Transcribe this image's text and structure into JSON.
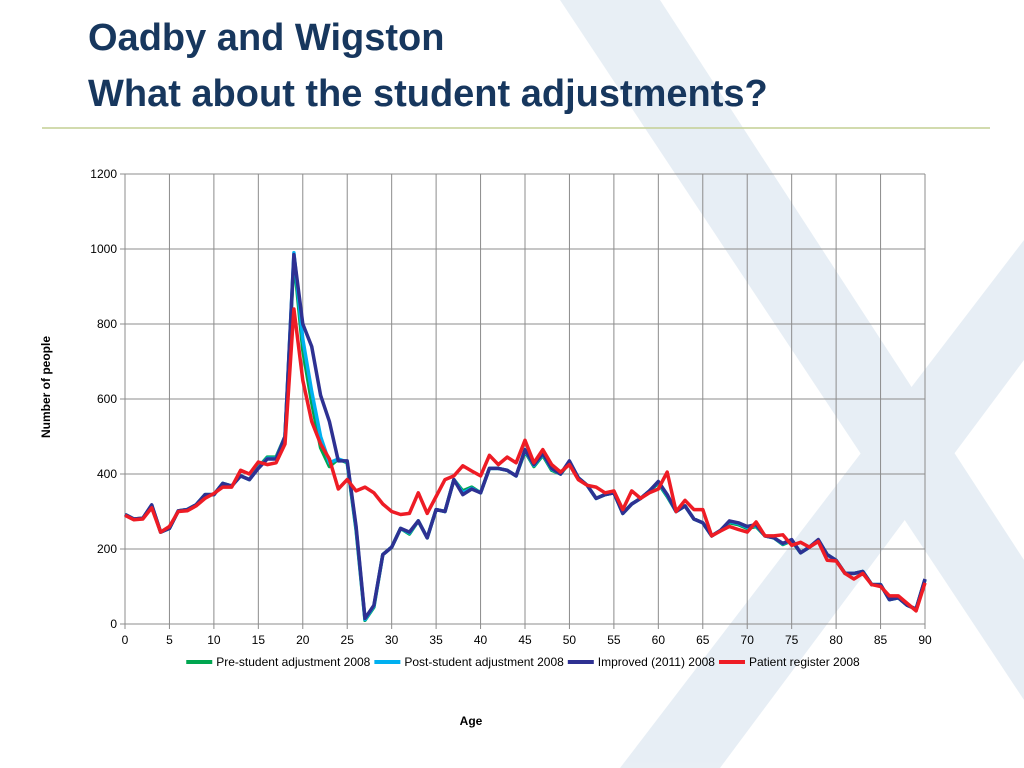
{
  "chart_data": {
    "type": "line",
    "title": "Oadby and Wigston",
    "subtitle": "What about the student adjustments?",
    "x_label": "Age",
    "y_label": "Number of people",
    "xlim": [
      0,
      90
    ],
    "xticks": [
      0,
      5,
      10,
      15,
      20,
      25,
      30,
      35,
      40,
      45,
      50,
      55,
      60,
      65,
      70,
      75,
      80,
      85,
      90
    ],
    "ylim": [
      0,
      1200
    ],
    "yticks": [
      0,
      200,
      400,
      600,
      800,
      1000,
      1200
    ],
    "grid": true,
    "legend": "bottom",
    "x": [
      0,
      1,
      2,
      3,
      4,
      5,
      6,
      7,
      8,
      9,
      10,
      11,
      12,
      13,
      14,
      15,
      16,
      17,
      18,
      19,
      20,
      21,
      22,
      23,
      24,
      25,
      26,
      27,
      28,
      29,
      30,
      31,
      32,
      33,
      34,
      35,
      36,
      37,
      38,
      39,
      40,
      41,
      42,
      43,
      44,
      45,
      46,
      47,
      48,
      49,
      50,
      51,
      52,
      53,
      54,
      55,
      56,
      57,
      58,
      59,
      60,
      61,
      62,
      63,
      64,
      65,
      66,
      67,
      68,
      69,
      70,
      71,
      72,
      73,
      74,
      75,
      76,
      77,
      78,
      79,
      80,
      81,
      82,
      83,
      84,
      85,
      86,
      87,
      88,
      89,
      90
    ],
    "series": [
      {
        "name": "Pre-student adjustment 2008",
        "color": "#00a650",
        "values": [
          292,
          280,
          282,
          316,
          245,
          255,
          302,
          305,
          318,
          345,
          345,
          375,
          368,
          395,
          385,
          418,
          445,
          445,
          500,
          975,
          730,
          590,
          470,
          420,
          440,
          430,
          250,
          10,
          45,
          185,
          205,
          255,
          240,
          275,
          230,
          305,
          300,
          385,
          355,
          365,
          350,
          415,
          415,
          410,
          395,
          460,
          420,
          450,
          410,
          400,
          430,
          390,
          370,
          335,
          345,
          350,
          295,
          320,
          335,
          355,
          375,
          340,
          300,
          315,
          280,
          270,
          235,
          250,
          270,
          265,
          255,
          260,
          235,
          230,
          212,
          222,
          190,
          205,
          222,
          185,
          170,
          135,
          135,
          140,
          105,
          105,
          65,
          70,
          50,
          40,
          118
        ]
      },
      {
        "name": "Post-student adjustment 2008",
        "color": "#00b0f0",
        "values": [
          292,
          280,
          282,
          317,
          245,
          255,
          302,
          305,
          318,
          345,
          345,
          375,
          368,
          395,
          385,
          416,
          442,
          442,
          500,
          990,
          760,
          620,
          500,
          430,
          440,
          432,
          255,
          12,
          48,
          185,
          205,
          255,
          243,
          275,
          230,
          305,
          300,
          385,
          350,
          362,
          350,
          415,
          415,
          410,
          395,
          463,
          423,
          453,
          413,
          400,
          433,
          390,
          370,
          335,
          345,
          350,
          295,
          320,
          335,
          355,
          378,
          343,
          300,
          315,
          280,
          270,
          235,
          250,
          273,
          268,
          258,
          263,
          235,
          230,
          214,
          224,
          190,
          205,
          224,
          185,
          170,
          135,
          135,
          140,
          105,
          105,
          65,
          70,
          50,
          40,
          119
        ]
      },
      {
        "name": "Improved (2011) 2008",
        "color": "#2e3192",
        "values": [
          292,
          280,
          282,
          318,
          245,
          255,
          302,
          305,
          318,
          345,
          345,
          375,
          368,
          395,
          385,
          415,
          440,
          440,
          500,
          985,
          800,
          740,
          610,
          540,
          435,
          435,
          260,
          15,
          50,
          185,
          205,
          255,
          245,
          275,
          230,
          305,
          300,
          385,
          345,
          360,
          350,
          415,
          415,
          410,
          395,
          465,
          425,
          455,
          415,
          400,
          435,
          390,
          370,
          335,
          345,
          350,
          295,
          320,
          335,
          355,
          380,
          345,
          300,
          315,
          280,
          270,
          235,
          250,
          275,
          270,
          260,
          265,
          235,
          230,
          215,
          225,
          190,
          205,
          225,
          185,
          170,
          135,
          135,
          140,
          105,
          105,
          65,
          70,
          50,
          40,
          120
        ]
      },
      {
        "name": "Patient register 2008",
        "color": "#ee1c25",
        "values": [
          290,
          278,
          280,
          310,
          245,
          260,
          300,
          302,
          315,
          335,
          348,
          365,
          365,
          410,
          400,
          432,
          425,
          430,
          480,
          840,
          650,
          540,
          480,
          440,
          360,
          385,
          355,
          365,
          350,
          320,
          300,
          292,
          295,
          350,
          295,
          340,
          385,
          395,
          422,
          408,
          395,
          450,
          425,
          445,
          430,
          490,
          430,
          465,
          425,
          405,
          425,
          385,
          370,
          365,
          350,
          355,
          305,
          355,
          335,
          350,
          360,
          405,
          300,
          330,
          305,
          305,
          235,
          248,
          260,
          252,
          245,
          272,
          235,
          235,
          238,
          210,
          218,
          205,
          220,
          170,
          168,
          135,
          120,
          135,
          105,
          100,
          75,
          75,
          55,
          35,
          110
        ]
      }
    ]
  }
}
